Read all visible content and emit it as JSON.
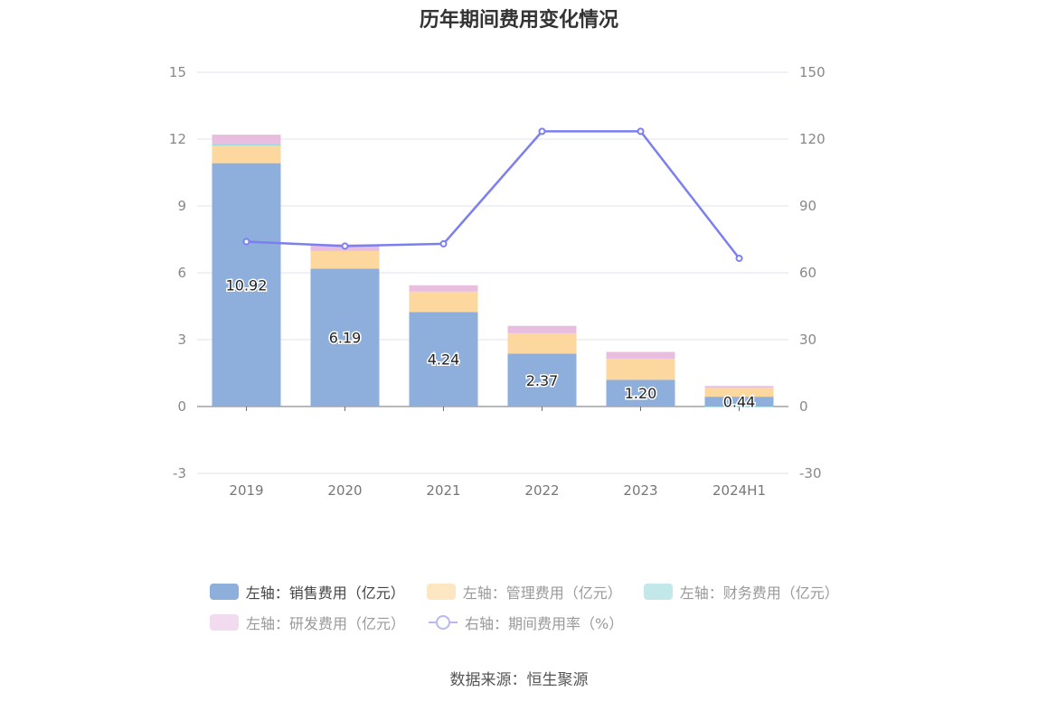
{
  "chart_data": {
    "type": "bar",
    "title": "历年期间费用变化情况",
    "categories": [
      "2019",
      "2020",
      "2021",
      "2022",
      "2023",
      "2024H1"
    ],
    "stacked": true,
    "left_axis": {
      "ylim": [
        -3,
        15
      ],
      "ticks": [
        -3,
        0,
        3,
        6,
        9,
        12,
        15
      ]
    },
    "right_axis": {
      "ylim": [
        -30,
        150
      ],
      "ticks": [
        -30,
        0,
        30,
        60,
        90,
        120,
        150
      ]
    },
    "series": [
      {
        "name": "左轴：销售费用（亿元）",
        "axis": "left",
        "type": "bar",
        "color": "#8eaedb",
        "values": [
          10.92,
          6.19,
          4.24,
          2.37,
          1.2,
          0.44
        ],
        "show_labels": true
      },
      {
        "name": "左轴：管理费用（亿元）",
        "axis": "left",
        "type": "bar",
        "color": "#fdd89e",
        "values": [
          0.78,
          0.8,
          0.92,
          0.92,
          0.95,
          0.4
        ]
      },
      {
        "name": "左轴：财务费用（亿元）",
        "axis": "left",
        "type": "bar",
        "color": "#9fdde0",
        "values": [
          0.1,
          0.02,
          0.0,
          0.0,
          0.0,
          -0.03
        ]
      },
      {
        "name": "左轴：研发费用（亿元）",
        "axis": "left",
        "type": "bar",
        "color": "#e8bee0",
        "values": [
          0.4,
          0.27,
          0.28,
          0.33,
          0.3,
          0.08
        ]
      },
      {
        "name": "右轴：期间费用率（%）",
        "axis": "right",
        "type": "line",
        "color": "#7b7ff0",
        "values": [
          74.0,
          72.0,
          73.0,
          123.5,
          123.5,
          66.5
        ]
      }
    ],
    "grid": true,
    "legend_position": "bottom"
  },
  "legend": {
    "row1": [
      "左轴：销售费用（亿元）",
      "左轴：管理费用（亿元）",
      "左轴：财务费用（亿元）"
    ],
    "row2": [
      "左轴：研发费用（亿元）",
      "右轴：期间费用率（%）"
    ],
    "colors": [
      "#8eaedb",
      "#fde6c2",
      "#c2e8ea",
      "#f2dbee"
    ]
  },
  "source": "数据来源：恒生聚源"
}
